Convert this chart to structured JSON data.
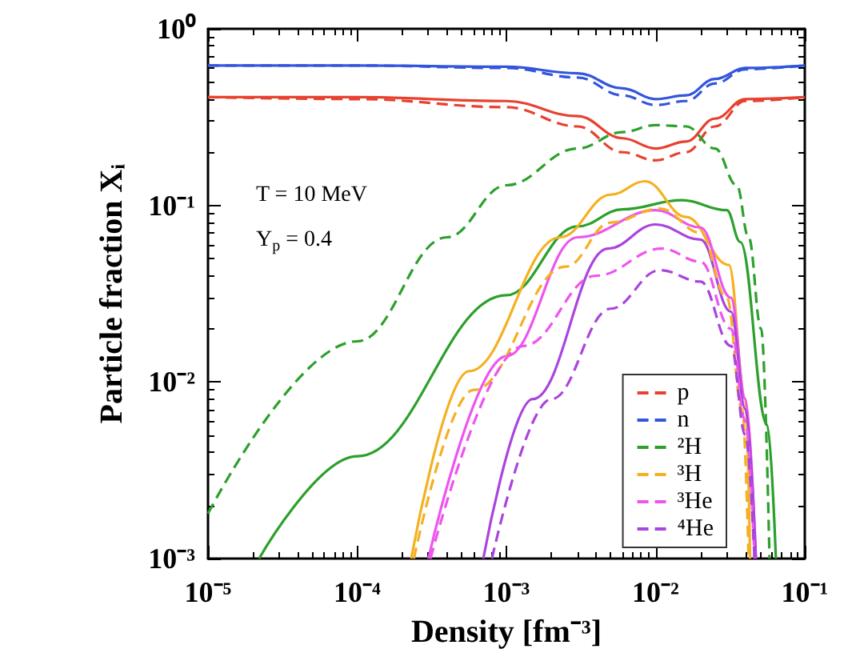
{
  "chart_data": {
    "type": "line",
    "xlabel": "Density [fm⁻³]",
    "ylabel": "Particle fraction Xᵢ",
    "log": "xy",
    "marker": "none",
    "grid": false,
    "legend": "bottom right",
    "xlim": [
      1e-05,
      0.1
    ],
    "xticks": [
      {
        "value": 1e-05,
        "label": "10⁻⁵"
      },
      {
        "value": 0.0001,
        "label": "10⁻⁴"
      },
      {
        "value": 0.001,
        "label": "10⁻³"
      },
      {
        "value": 0.01,
        "label": "10⁻²"
      },
      {
        "value": 0.1,
        "label": "10⁻¹"
      }
    ],
    "ylim": [
      0.001,
      1
    ],
    "yticks": [
      {
        "value": 0.001,
        "label": "10⁻³"
      },
      {
        "value": 0.01,
        "label": "10⁻²"
      },
      {
        "value": 0.1,
        "label": "10⁻¹"
      },
      {
        "value": 1,
        "label": "10⁰"
      }
    ],
    "annotations": [
      "T = 10 MeV",
      "Y$_{p}$ = 0.4"
    ],
    "series": [
      {
        "color": "#e8412f",
        "line_style": "solid",
        "x": [
          1e-05,
          0.0001,
          0.001,
          0.003,
          0.006,
          0.01,
          0.016,
          0.025,
          0.04,
          0.1
        ],
        "values": [
          0.41,
          0.41,
          0.39,
          0.32,
          0.24,
          0.21,
          0.23,
          0.31,
          0.4,
          0.41
        ]
      },
      {
        "color": "#3355dd",
        "line_style": "solid",
        "x": [
          1e-05,
          0.0001,
          0.001,
          0.003,
          0.006,
          0.01,
          0.016,
          0.025,
          0.04,
          0.1
        ],
        "values": [
          0.62,
          0.62,
          0.61,
          0.56,
          0.46,
          0.4,
          0.42,
          0.52,
          0.6,
          0.62
        ]
      },
      {
        "color": "#2ca02c",
        "line_style": "solid",
        "x": [
          2.2e-05,
          0.0001,
          0.001,
          0.003,
          0.006,
          0.015,
          0.03,
          0.037,
          0.056,
          0.064
        ],
        "values": [
          0.001,
          0.0038,
          0.031,
          0.076,
          0.095,
          0.107,
          0.094,
          0.062,
          0.0057,
          0.001
        ]
      },
      {
        "color": "#f5b021",
        "line_style": "solid",
        "x": [
          0.00023,
          0.00056,
          0.0023,
          0.005,
          0.0085,
          0.016,
          0.031,
          0.04,
          0.043
        ],
        "values": [
          0.001,
          0.0115,
          0.066,
          0.115,
          0.137,
          0.086,
          0.046,
          0.008,
          0.001
        ]
      },
      {
        "color": "#ee55ee",
        "line_style": "solid",
        "x": [
          0.0003,
          0.001,
          0.003,
          0.01,
          0.02,
          0.032,
          0.04,
          0.047
        ],
        "values": [
          0.001,
          0.014,
          0.066,
          0.094,
          0.075,
          0.03,
          0.008,
          0.001
        ]
      },
      {
        "color": "#aa44dd",
        "line_style": "solid",
        "x": [
          0.0007,
          0.0015,
          0.0048,
          0.01,
          0.02,
          0.032,
          0.04,
          0.047
        ],
        "values": [
          0.001,
          0.008,
          0.057,
          0.078,
          0.064,
          0.025,
          0.007,
          0.001
        ]
      },
      {
        "name": "p",
        "color": "#e8412f",
        "line_style": "dashed",
        "x": [
          1e-05,
          0.0001,
          0.001,
          0.003,
          0.006,
          0.01,
          0.016,
          0.025,
          0.04,
          0.1
        ],
        "values": [
          0.41,
          0.4,
          0.36,
          0.28,
          0.2,
          0.18,
          0.2,
          0.28,
          0.39,
          0.41
        ]
      },
      {
        "name": "n",
        "color": "#3355dd",
        "line_style": "dashed",
        "x": [
          1e-05,
          0.0001,
          0.001,
          0.003,
          0.006,
          0.01,
          0.016,
          0.025,
          0.04,
          0.1
        ],
        "values": [
          0.62,
          0.62,
          0.6,
          0.53,
          0.42,
          0.37,
          0.39,
          0.49,
          0.59,
          0.62
        ]
      },
      {
        "name": "²H",
        "color": "#2ca02c",
        "line_style": "dashed",
        "x": [
          1e-05,
          0.0001,
          0.0004,
          0.001,
          0.003,
          0.006,
          0.01,
          0.016,
          0.025,
          0.035,
          0.042,
          0.051,
          0.058
        ],
        "values": [
          0.0018,
          0.017,
          0.066,
          0.13,
          0.21,
          0.26,
          0.285,
          0.28,
          0.21,
          0.13,
          0.066,
          0.02,
          0.001
        ]
      },
      {
        "name": "³H",
        "color": "#f5b021",
        "line_style": "dashed",
        "x": [
          0.00024,
          0.0006,
          0.0025,
          0.005,
          0.0107,
          0.02,
          0.03,
          0.038,
          0.042
        ],
        "values": [
          0.001,
          0.009,
          0.045,
          0.08,
          0.096,
          0.07,
          0.03,
          0.007,
          0.001
        ]
      },
      {
        "name": "³He",
        "color": "#ee55ee",
        "line_style": "dashed",
        "x": [
          0.00031,
          0.0013,
          0.004,
          0.011,
          0.02,
          0.032,
          0.04,
          0.046
        ],
        "values": [
          0.001,
          0.016,
          0.04,
          0.057,
          0.048,
          0.02,
          0.006,
          0.001
        ]
      },
      {
        "name": "⁴He",
        "color": "#aa44dd",
        "line_style": "dashed",
        "x": [
          0.0008,
          0.002,
          0.005,
          0.0107,
          0.02,
          0.032,
          0.04,
          0.046
        ],
        "values": [
          0.001,
          0.008,
          0.026,
          0.043,
          0.037,
          0.016,
          0.005,
          0.001
        ]
      }
    ]
  }
}
